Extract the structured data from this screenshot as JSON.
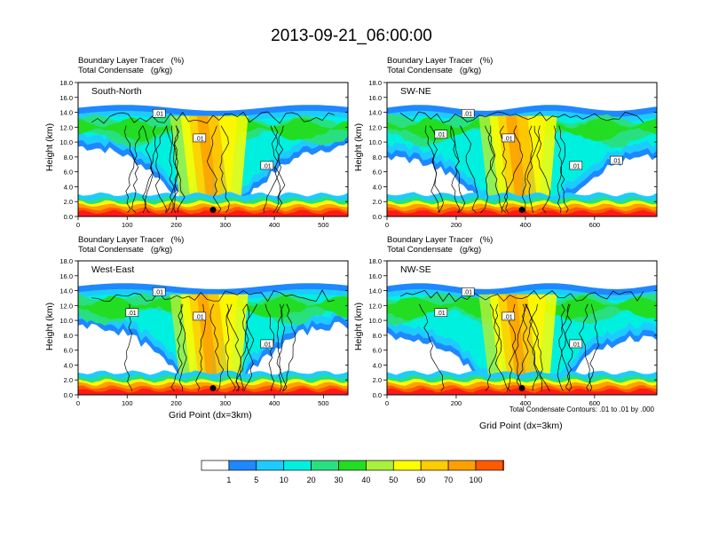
{
  "title": "2013-09-21_06:00:00",
  "contour_note": "Total Condensate Contours: .01 to .01 by .000",
  "palette": [
    "#ffffff",
    "#1e88ff",
    "#1ecbff",
    "#00f0e0",
    "#28e080",
    "#22dd22",
    "#a8f03c",
    "#ffff00",
    "#ffcc00",
    "#ffa000",
    "#ff5a00",
    "#ff1a1a"
  ],
  "colorbar_labels": [
    "1",
    "5",
    "10",
    "20",
    "30",
    "40",
    "50",
    "60",
    "70",
    "100"
  ],
  "chart_data": [
    {
      "type": "heatmap",
      "panel": "South-North",
      "header": [
        "Boundary Layer Tracer   (%)",
        "Total Condensate   (g/kg)"
      ],
      "ylabel": "Height (km)",
      "xlabel": "",
      "xlim": [
        0,
        550
      ],
      "ylim": [
        0,
        18
      ],
      "xticks": [
        "0",
        "100",
        "200",
        "300",
        "400",
        "500"
      ],
      "xtick_values": [
        0,
        100,
        200,
        300,
        400,
        500
      ],
      "yticks": [
        "0.0",
        "2.0",
        "4.0",
        "6.0",
        "8.0",
        "10.0",
        "12.0",
        "14.0",
        "16.0",
        "18.0"
      ],
      "contour_labels": [
        ".01",
        ".01",
        ".01"
      ],
      "marker_x": 275
    },
    {
      "type": "heatmap",
      "panel": "SW-NE",
      "header": [
        "Boundary Layer Tracer   (%)",
        "Total Condensate   (g/kg)"
      ],
      "ylabel": "Height (km)",
      "xlabel": "",
      "xlim": [
        0,
        780
      ],
      "ylim": [
        0,
        18
      ],
      "xticks": [
        "0",
        "200",
        "400",
        "600"
      ],
      "xtick_values": [
        0,
        200,
        400,
        600
      ],
      "yticks": [
        "0.0",
        "2.0",
        "4.0",
        "6.0",
        "8.0",
        "10.0",
        "12.0",
        "14.0",
        "16.0",
        "18.0"
      ],
      "contour_labels": [
        ".01",
        ".01",
        ".01",
        ".01",
        ".01"
      ],
      "marker_x": 390
    },
    {
      "type": "heatmap",
      "panel": "West-East",
      "header": [
        "Boundary Layer Tracer   (%)",
        "Total Condensate   (g/kg)"
      ],
      "ylabel": "Height (km)",
      "xlabel": "Grid Point (dx=3km)",
      "xlim": [
        0,
        550
      ],
      "ylim": [
        0,
        18
      ],
      "xticks": [
        "0",
        "100",
        "200",
        "300",
        "400",
        "500"
      ],
      "xtick_values": [
        0,
        100,
        200,
        300,
        400,
        500
      ],
      "yticks": [
        "0.0",
        "2.0",
        "4.0",
        "6.0",
        "8.0",
        "10.0",
        "12.0",
        "14.0",
        "16.0",
        "18.0"
      ],
      "contour_labels": [
        ".01",
        ".01",
        ".01",
        ".01"
      ],
      "marker_x": 275
    },
    {
      "type": "heatmap",
      "panel": "NW-SE",
      "header": [
        "Boundary Layer Tracer   (%)",
        "Total Condensate   (g/kg)"
      ],
      "ylabel": "Height (km)",
      "xlabel": "Grid Point (dx=3km)",
      "xlim": [
        0,
        780
      ],
      "ylim": [
        0,
        18
      ],
      "xticks": [
        "0",
        "200",
        "400",
        "600"
      ],
      "xtick_values": [
        0,
        200,
        400,
        600
      ],
      "yticks": [
        "0.0",
        "2.0",
        "4.0",
        "6.0",
        "8.0",
        "10.0",
        "12.0",
        "14.0",
        "16.0",
        "18.0"
      ],
      "contour_labels": [
        ".01",
        ".01",
        ".01",
        ".01"
      ],
      "marker_x": 390
    }
  ]
}
